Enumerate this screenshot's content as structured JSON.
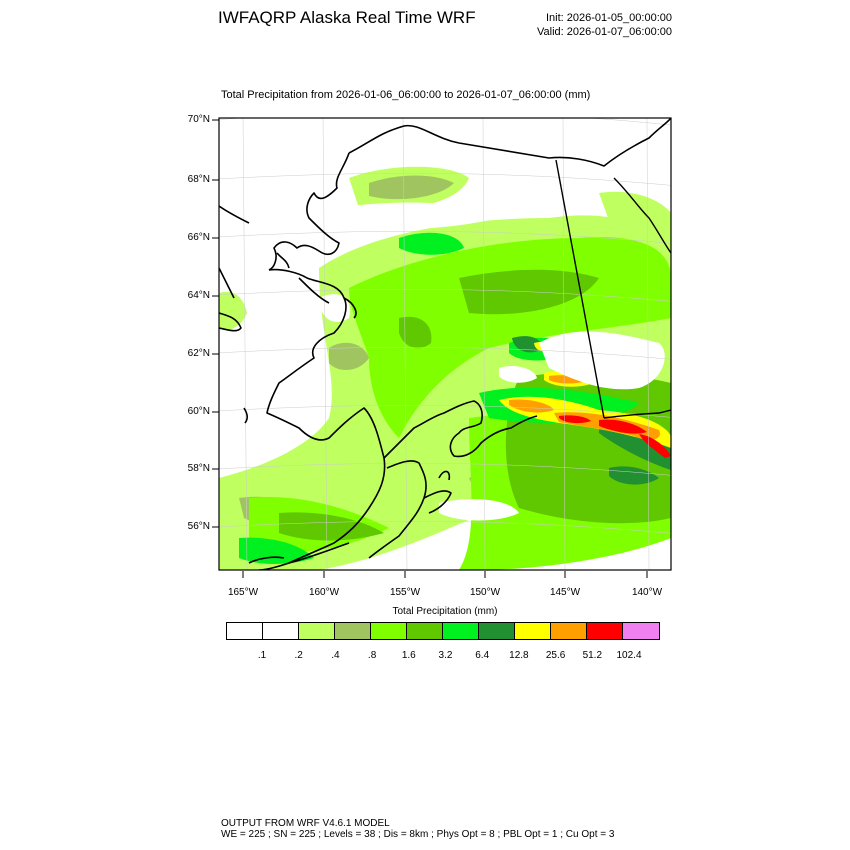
{
  "header": {
    "title": "IWFAQRP Alaska Real Time WRF",
    "init": "Init: 2026-01-05_00:00:00",
    "valid": "Valid: 2026-01-07_06:00:00"
  },
  "subtitle": "Total Precipitation from 2026-01-06_06:00:00 to 2026-01-07_06:00:00   (mm)",
  "map": {
    "lat_labels": [
      "70°N",
      "68°N",
      "66°N",
      "64°N",
      "62°N",
      "60°N",
      "58°N",
      "56°N"
    ],
    "lon_labels": [
      "165°W",
      "160°W",
      "155°W",
      "150°W",
      "145°W",
      "140°W"
    ]
  },
  "colorbar": {
    "title": "Total Precipitation  (mm)",
    "colors": [
      "#ffffff",
      "#ffffff",
      "#c0ff60",
      "#a0c460",
      "#80ff00",
      "#60c800",
      "#00f020",
      "#209030",
      "#ffff00",
      "#ffa000",
      "#ff0000",
      "#f080f0"
    ],
    "labels": [
      ".1",
      ".2",
      ".4",
      ".8",
      "1.6",
      "3.2",
      "6.4",
      "12.8",
      "25.6",
      "51.2",
      "102.4"
    ]
  },
  "footer": {
    "line1": "OUTPUT FROM WRF V4.6.1 MODEL",
    "line2": "WE = 225 ; SN = 225 ; Levels = 38 ; Dis = 8km ; Phys Opt = 8 ; PBL Opt = 1 ; Cu Opt = 3"
  }
}
